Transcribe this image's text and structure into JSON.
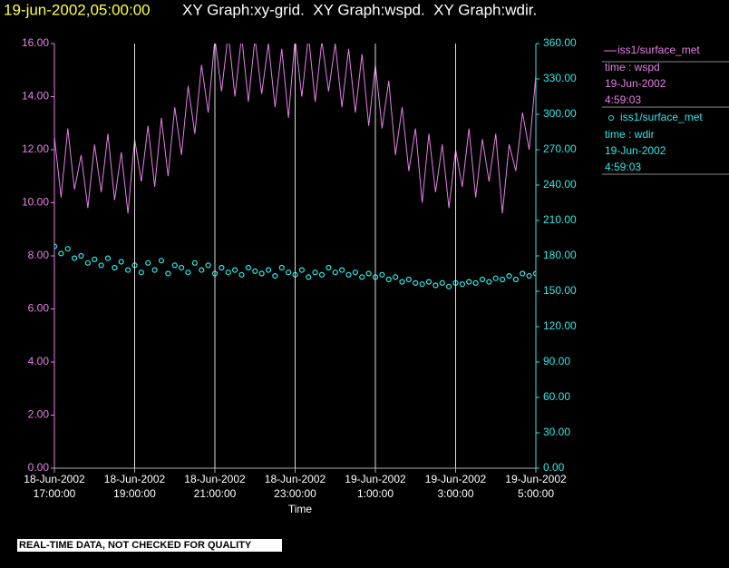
{
  "header": {
    "timestamp": "19-jun-2002,05:00:00",
    "title": "XY Graph:xy-grid.  XY Graph:wspd.  XY Graph:wdir."
  },
  "notice": "REAL-TIME DATA, NOT CHECKED FOR QUALITY",
  "chart_data": {
    "type": "line",
    "x_label": "Time",
    "xlim": [
      "2002-06-18T17:00:00",
      "2002-06-19T05:00:00"
    ],
    "xticks": [
      {
        "value": "2002-06-18T17:00:00",
        "label": [
          "18-Jun-2002",
          "17:00:00"
        ]
      },
      {
        "value": "2002-06-18T19:00:00",
        "label": [
          "18-Jun-2002",
          "19:00:00"
        ]
      },
      {
        "value": "2002-06-18T21:00:00",
        "label": [
          "18-Jun-2002",
          "21:00:00"
        ]
      },
      {
        "value": "2002-06-18T23:00:00",
        "label": [
          "18-Jun-2002",
          "23:00:00"
        ]
      },
      {
        "value": "2002-06-19T01:00:00",
        "label": [
          "19-Jun-2002",
          "1:00:00"
        ]
      },
      {
        "value": "2002-06-19T03:00:00",
        "label": [
          "19-Jun-2002",
          "3:00:00"
        ]
      },
      {
        "value": "2002-06-19T05:00:00",
        "label": [
          "19-Jun-2002",
          "5:00:00"
        ]
      }
    ],
    "ylim": [
      0,
      16
    ],
    "yticks": [
      {
        "value": 0,
        "label": "0.00"
      },
      {
        "value": 2,
        "label": "2.00"
      },
      {
        "value": 4,
        "label": "4.00"
      },
      {
        "value": 6,
        "label": "6.00"
      },
      {
        "value": 8,
        "label": "8.00"
      },
      {
        "value": 10,
        "label": "10.00"
      },
      {
        "value": 12,
        "label": "12.00"
      },
      {
        "value": 14,
        "label": "14.00"
      },
      {
        "value": 16,
        "label": "16.00"
      }
    ],
    "y2lim": [
      0,
      360
    ],
    "y2ticks": [
      {
        "value": 0,
        "label": "0.00"
      },
      {
        "value": 30,
        "label": "30.00"
      },
      {
        "value": 60,
        "label": "60.00"
      },
      {
        "value": 90,
        "label": "90.00"
      },
      {
        "value": 120,
        "label": "120.00"
      },
      {
        "value": 150,
        "label": "150.00"
      },
      {
        "value": 180,
        "label": "180.00"
      },
      {
        "value": 210,
        "label": "210.00"
      },
      {
        "value": 240,
        "label": "240.00"
      },
      {
        "value": 270,
        "label": "270.00"
      },
      {
        "value": 300,
        "label": "300.00"
      },
      {
        "value": 330,
        "label": "330.00"
      },
      {
        "value": 360,
        "label": "360.00"
      }
    ],
    "grid": true,
    "x": [
      "2002-06-18T17:00:00",
      "2002-06-18T17:10:00",
      "2002-06-18T17:20:00",
      "2002-06-18T17:30:00",
      "2002-06-18T17:40:00",
      "2002-06-18T17:50:00",
      "2002-06-18T18:00:00",
      "2002-06-18T18:10:00",
      "2002-06-18T18:20:00",
      "2002-06-18T18:30:00",
      "2002-06-18T18:40:00",
      "2002-06-18T18:50:00",
      "2002-06-18T19:00:00",
      "2002-06-18T19:10:00",
      "2002-06-18T19:20:00",
      "2002-06-18T19:30:00",
      "2002-06-18T19:40:00",
      "2002-06-18T19:50:00",
      "2002-06-18T20:00:00",
      "2002-06-18T20:10:00",
      "2002-06-18T20:20:00",
      "2002-06-18T20:30:00",
      "2002-06-18T20:40:00",
      "2002-06-18T20:50:00",
      "2002-06-18T21:00:00",
      "2002-06-18T21:10:00",
      "2002-06-18T21:20:00",
      "2002-06-18T21:30:00",
      "2002-06-18T21:40:00",
      "2002-06-18T21:50:00",
      "2002-06-18T22:00:00",
      "2002-06-18T22:10:00",
      "2002-06-18T22:20:00",
      "2002-06-18T22:30:00",
      "2002-06-18T22:40:00",
      "2002-06-18T22:50:00",
      "2002-06-18T23:00:00",
      "2002-06-18T23:10:00",
      "2002-06-18T23:20:00",
      "2002-06-18T23:30:00",
      "2002-06-18T23:40:00",
      "2002-06-18T23:50:00",
      "2002-06-19T00:00:00",
      "2002-06-19T00:10:00",
      "2002-06-19T00:20:00",
      "2002-06-19T00:30:00",
      "2002-06-19T00:40:00",
      "2002-06-19T00:50:00",
      "2002-06-19T01:00:00",
      "2002-06-19T01:10:00",
      "2002-06-19T01:20:00",
      "2002-06-19T01:30:00",
      "2002-06-19T01:40:00",
      "2002-06-19T01:50:00",
      "2002-06-19T02:00:00",
      "2002-06-19T02:10:00",
      "2002-06-19T02:20:00",
      "2002-06-19T02:30:00",
      "2002-06-19T02:40:00",
      "2002-06-19T02:50:00",
      "2002-06-19T03:00:00",
      "2002-06-19T03:10:00",
      "2002-06-19T03:20:00",
      "2002-06-19T03:30:00",
      "2002-06-19T03:40:00",
      "2002-06-19T03:50:00",
      "2002-06-19T04:00:00",
      "2002-06-19T04:10:00",
      "2002-06-19T04:20:00",
      "2002-06-19T04:30:00",
      "2002-06-19T04:40:00",
      "2002-06-19T04:50:00",
      "2002-06-19T05:00:00"
    ],
    "series": [
      {
        "name": "iss1/surface_met",
        "variable": "time : wspd",
        "last_date": "19-Jun-2002",
        "last_time": "4:59:03",
        "color": "#e77fe7",
        "marker": "line",
        "values": [
          12.5,
          10.2,
          12.8,
          10.5,
          11.8,
          9.8,
          12.2,
          10.4,
          12.6,
          10.1,
          11.9,
          9.6,
          12.4,
          10.8,
          12.9,
          10.6,
          13.2,
          11.0,
          13.6,
          11.8,
          14.4,
          12.6,
          15.2,
          13.4,
          16.2,
          14.2,
          16.4,
          14.0,
          16.3,
          13.8,
          16.2,
          14.1,
          16.0,
          13.6,
          15.8,
          13.2,
          16.2,
          14.0,
          16.3,
          13.8,
          16.1,
          14.2,
          16.0,
          13.6,
          15.8,
          13.4,
          15.6,
          12.9,
          15.2,
          12.8,
          14.6,
          11.8,
          13.6,
          11.2,
          12.8,
          10.0,
          12.6,
          10.4,
          12.2,
          9.8,
          12.0,
          10.6,
          12.8,
          10.2,
          12.4,
          10.8,
          12.6,
          9.6,
          12.2,
          11.2,
          13.4,
          12.0,
          14.8
        ]
      },
      {
        "name": "iss1/surface_met",
        "variable": "time : wdir",
        "last_date": "19-Jun-2002",
        "last_time": "4:59:03",
        "color": "#2ee8e8",
        "marker": "circle",
        "axis": "y2",
        "values": [
          188,
          182,
          186,
          178,
          180,
          174,
          177,
          172,
          178,
          170,
          175,
          168,
          172,
          166,
          174,
          168,
          176,
          165,
          172,
          170,
          166,
          174,
          168,
          172,
          165,
          170,
          166,
          168,
          164,
          170,
          167,
          165,
          168,
          163,
          170,
          166,
          164,
          168,
          162,
          166,
          164,
          170,
          166,
          168,
          164,
          166,
          162,
          165,
          162,
          164,
          160,
          162,
          158,
          160,
          157,
          156,
          158,
          155,
          157,
          154,
          157,
          156,
          158,
          157,
          160,
          158,
          161,
          160,
          163,
          160,
          165,
          163,
          165
        ]
      }
    ]
  }
}
